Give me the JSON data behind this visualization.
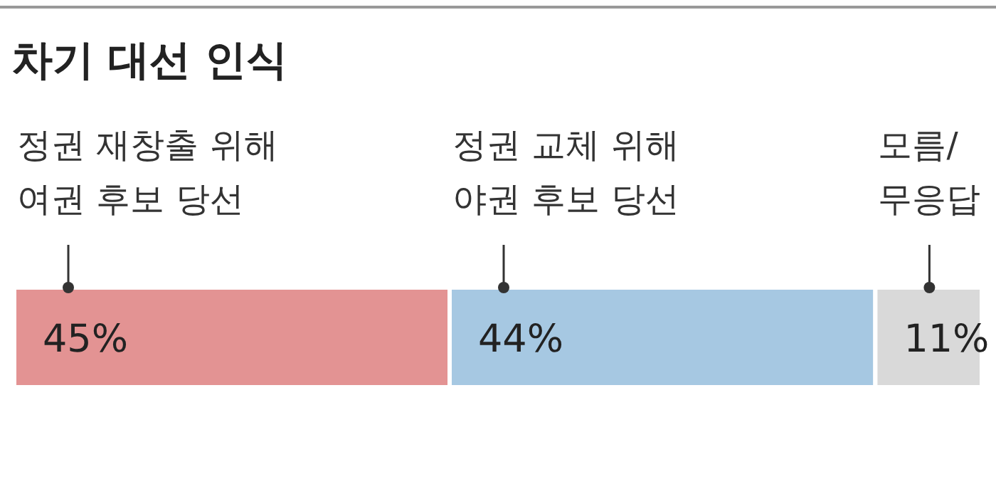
{
  "chart_data": {
    "type": "bar",
    "orientation": "horizontal",
    "stacked": true,
    "title": "차기 대선 인식",
    "categories": [
      null
    ],
    "series": [
      {
        "name": "정권 재창출 위해 여권 후보 당선",
        "color": "#e39393",
        "values": [
          45
        ],
        "value_labels": [
          "45%"
        ]
      },
      {
        "name": "정권 교체 위해 야권 후보 당선",
        "color": "#a6c8e2",
        "values": [
          44
        ],
        "value_labels": [
          "44%"
        ]
      },
      {
        "name": "모름/무응답",
        "color": "#d9d9d9",
        "values": [
          11
        ],
        "value_labels": [
          "11%"
        ]
      }
    ]
  }
}
